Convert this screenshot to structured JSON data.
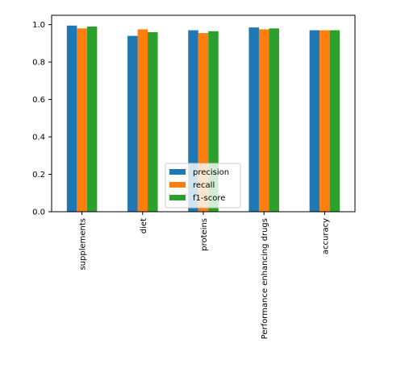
{
  "chart_data": {
    "type": "bar",
    "categories": [
      "supplements",
      "diet",
      "proteins",
      "Performance enhancing drugs",
      "accuracy"
    ],
    "series": [
      {
        "name": "precision",
        "color": "#1f77b4",
        "values": [
          0.995,
          0.94,
          0.97,
          0.985,
          0.97
        ]
      },
      {
        "name": "recall",
        "color": "#ff7f0e",
        "values": [
          0.98,
          0.975,
          0.955,
          0.975,
          0.97
        ]
      },
      {
        "name": "f1-score",
        "color": "#2ca02c",
        "values": [
          0.99,
          0.96,
          0.965,
          0.98,
          0.97
        ]
      }
    ],
    "yticks": [
      "0.0",
      "0.2",
      "0.4",
      "0.6",
      "0.8",
      "1.0"
    ],
    "ylim": [
      0,
      1.05
    ],
    "grid": false,
    "legend_position": "bottom-center"
  }
}
